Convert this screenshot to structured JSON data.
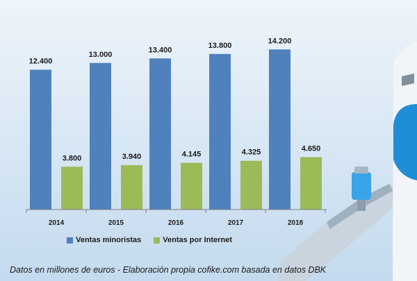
{
  "chart_data": {
    "type": "bar",
    "categories": [
      "2014",
      "2015",
      "2016",
      "2017",
      "2018"
    ],
    "series": [
      {
        "name": "Ventas minoristas",
        "values": [
          12400,
          13000,
          13400,
          13800,
          14200
        ],
        "labels": [
          "12.400",
          "13.000",
          "13.400",
          "13.800",
          "14.200"
        ],
        "color": "#4f81bd"
      },
      {
        "name": "Ventas por Internet",
        "values": [
          3800,
          3940,
          4145,
          4325,
          4650
        ],
        "labels": [
          "3.800",
          "3.940",
          "4.145",
          "4.325",
          "4.650"
        ],
        "color": "#9bbb59"
      }
    ],
    "ylim": [
      0,
      16000
    ],
    "grid": false,
    "legend": "bottom",
    "caption": "Datos en millones de euros - Elaboración propia cofike.com basada en datos DBK"
  },
  "colors": {
    "background": "#d6e6f4",
    "primary": "#4f81bd",
    "secondary": "#9bbb59",
    "plane_body": "#f2f5f8",
    "plane_accent": "#1e8fd6"
  },
  "decoration": {
    "icon": "airplane-icon"
  }
}
